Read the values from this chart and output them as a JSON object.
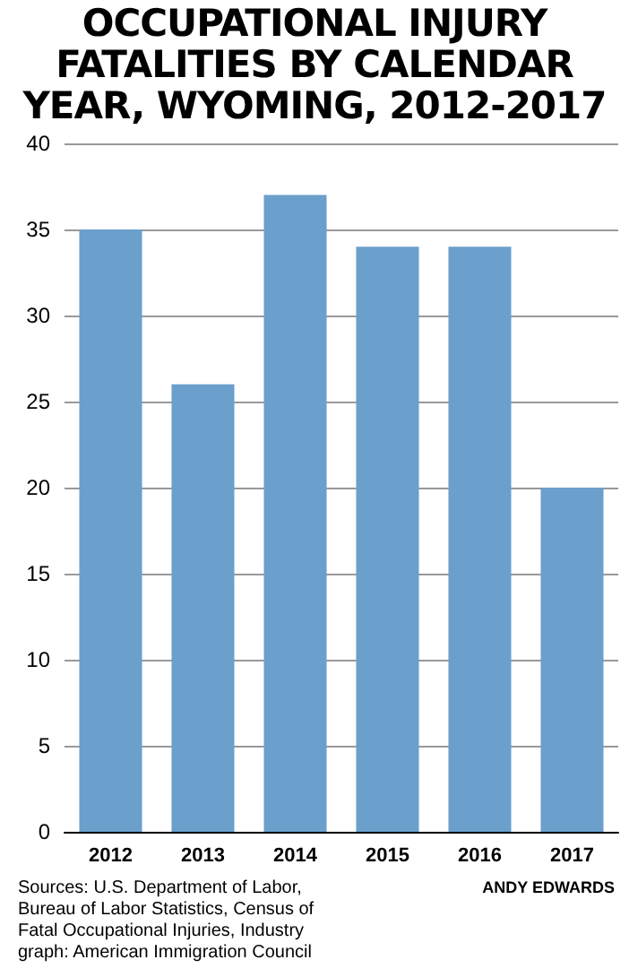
{
  "chart_data": {
    "type": "bar",
    "title": "OCCUPATIONAL INJURY FATALITIES BY CALENDAR YEAR, WYOMING, 2012-2017",
    "categories": [
      "2012",
      "2013",
      "2014",
      "2015",
      "2016",
      "2017"
    ],
    "values": [
      35,
      26,
      37,
      34,
      34,
      20
    ],
    "color": "#6b9fcc",
    "ylim": [
      0,
      40
    ],
    "yticks": [
      0,
      5,
      10,
      15,
      20,
      25,
      30,
      35,
      40
    ],
    "grid": "y",
    "annotations": [
      "Sources: U.S. Department of Labor, Bureau of Labor Statistics, Census of Fatal Occupational Injuries, Industry graph: American Immigration Council",
      "ANDY EDWARDS"
    ]
  }
}
